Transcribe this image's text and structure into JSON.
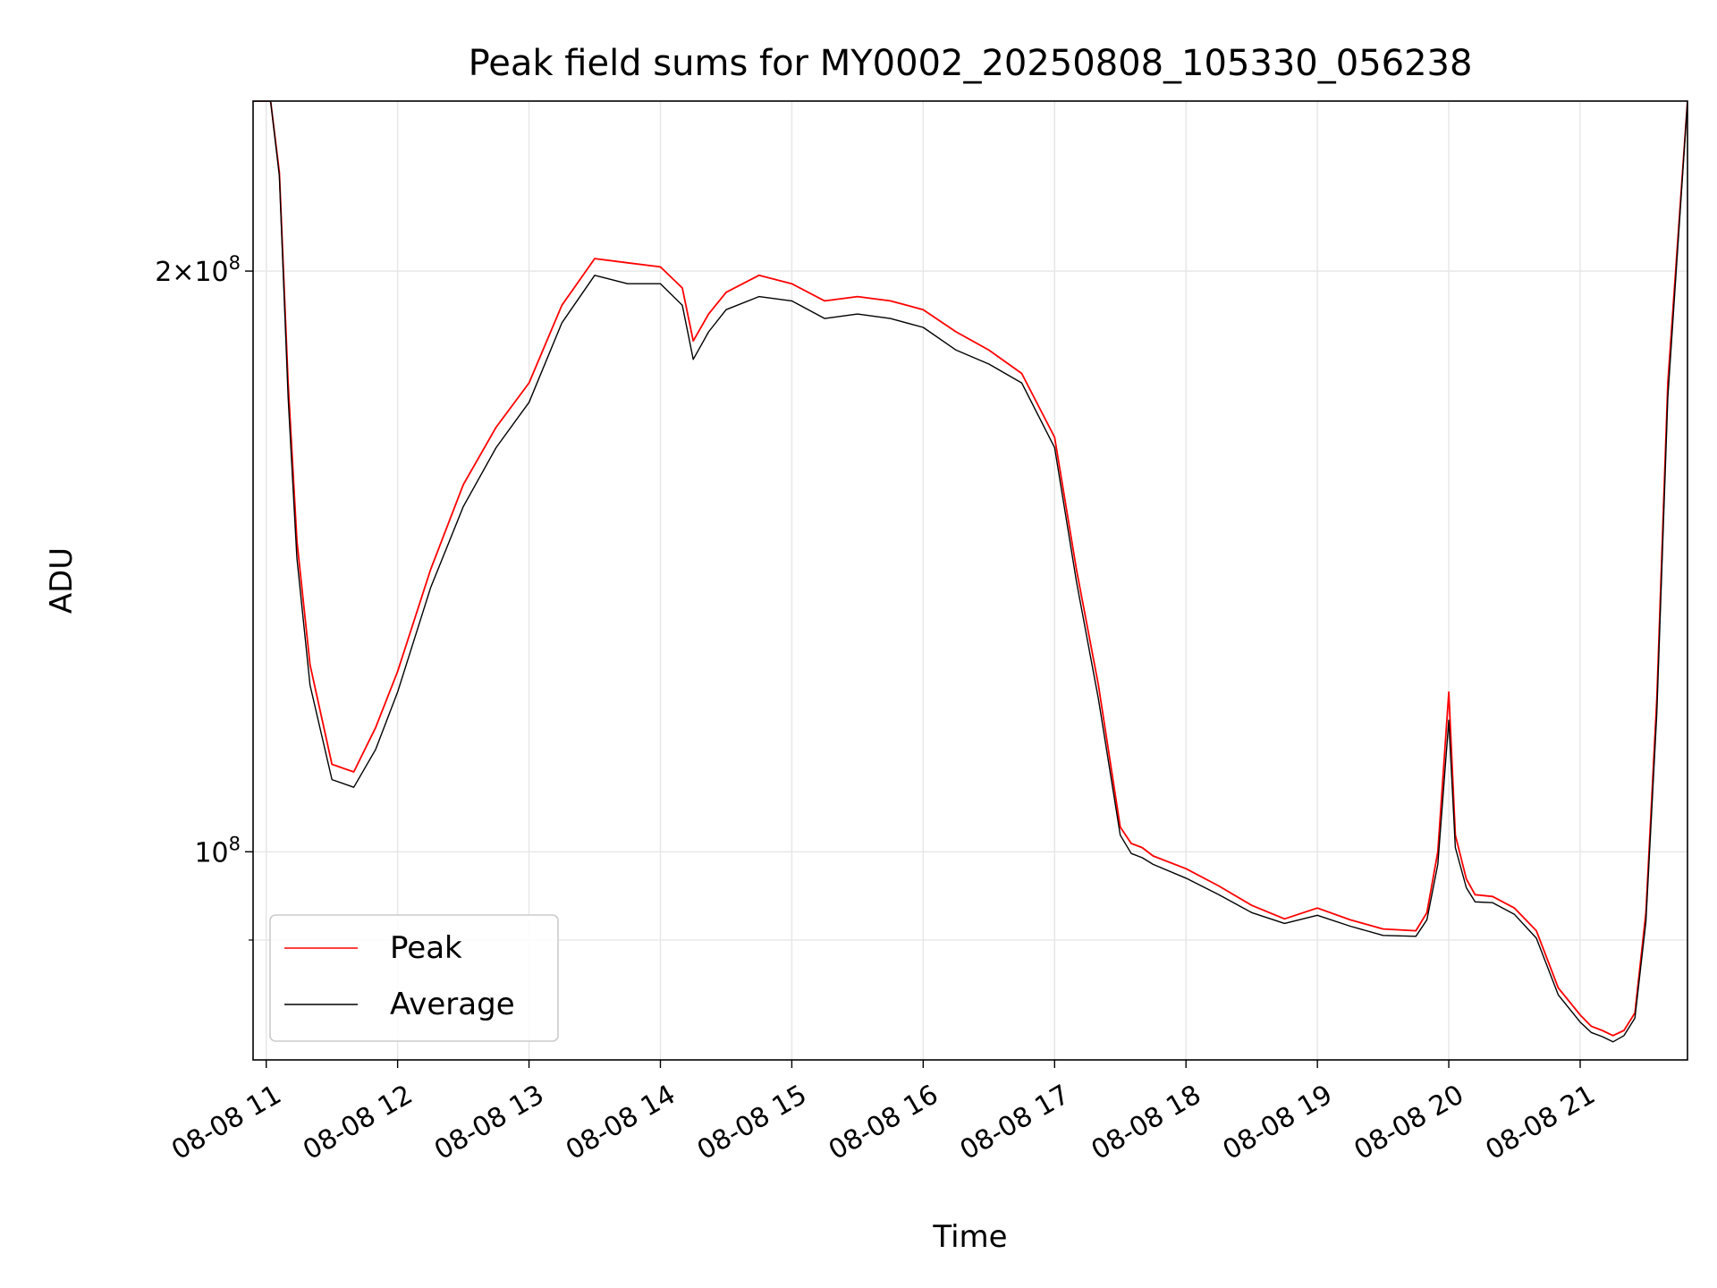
{
  "chart_data": {
    "type": "line",
    "title": "Peak field sums for MY0002_20250808_105330_056238",
    "xlabel": "Time",
    "ylabel": "ADU",
    "x_scale": "time",
    "y_scale": "log",
    "xlim": [
      "2025-08-08 10:54",
      "2025-08-08 21:49"
    ],
    "ylim": [
      78000000,
      245000000
    ],
    "x_ticks": [
      {
        "value": "2025-08-08 11:00",
        "label": "08-08 11"
      },
      {
        "value": "2025-08-08 12:00",
        "label": "08-08 12"
      },
      {
        "value": "2025-08-08 13:00",
        "label": "08-08 13"
      },
      {
        "value": "2025-08-08 14:00",
        "label": "08-08 14"
      },
      {
        "value": "2025-08-08 15:00",
        "label": "08-08 15"
      },
      {
        "value": "2025-08-08 16:00",
        "label": "08-08 16"
      },
      {
        "value": "2025-08-08 17:00",
        "label": "08-08 17"
      },
      {
        "value": "2025-08-08 18:00",
        "label": "08-08 18"
      },
      {
        "value": "2025-08-08 19:00",
        "label": "08-08 19"
      },
      {
        "value": "2025-08-08 20:00",
        "label": "08-08 20"
      },
      {
        "value": "2025-08-08 21:00",
        "label": "08-08 21"
      }
    ],
    "y_major_ticks": [
      {
        "value": 100000000,
        "base": "10",
        "exp": "8"
      },
      {
        "value": 200000000,
        "mant": "2×10",
        "exp": "8"
      }
    ],
    "y_minor_ticks": [
      90000000
    ],
    "grid": true,
    "legend": {
      "position": "lower-left"
    },
    "series": [
      {
        "name": "Peak",
        "color": "#ff0000",
        "x": [
          "2025-08-08 10:54",
          "2025-08-08 11:02",
          "2025-08-08 11:06",
          "2025-08-08 11:10",
          "2025-08-08 11:14",
          "2025-08-08 11:20",
          "2025-08-08 11:30",
          "2025-08-08 11:40",
          "2025-08-08 11:50",
          "2025-08-08 12:00",
          "2025-08-08 12:15",
          "2025-08-08 12:30",
          "2025-08-08 12:45",
          "2025-08-08 13:00",
          "2025-08-08 13:15",
          "2025-08-08 13:30",
          "2025-08-08 13:45",
          "2025-08-08 14:00",
          "2025-08-08 14:10",
          "2025-08-08 14:15",
          "2025-08-08 14:22",
          "2025-08-08 14:30",
          "2025-08-08 14:45",
          "2025-08-08 15:00",
          "2025-08-08 15:15",
          "2025-08-08 15:30",
          "2025-08-08 15:45",
          "2025-08-08 16:00",
          "2025-08-08 16:15",
          "2025-08-08 16:30",
          "2025-08-08 16:45",
          "2025-08-08 17:00",
          "2025-08-08 17:10",
          "2025-08-08 17:20",
          "2025-08-08 17:30",
          "2025-08-08 17:35",
          "2025-08-08 17:40",
          "2025-08-08 17:45",
          "2025-08-08 18:00",
          "2025-08-08 18:15",
          "2025-08-08 18:30",
          "2025-08-08 18:45",
          "2025-08-08 19:00",
          "2025-08-08 19:15",
          "2025-08-08 19:30",
          "2025-08-08 19:45",
          "2025-08-08 19:50",
          "2025-08-08 19:55",
          "2025-08-08 20:00",
          "2025-08-08 20:03",
          "2025-08-08 20:08",
          "2025-08-08 20:12",
          "2025-08-08 20:20",
          "2025-08-08 20:30",
          "2025-08-08 20:40",
          "2025-08-08 20:50",
          "2025-08-08 21:00",
          "2025-08-08 21:05",
          "2025-08-08 21:10",
          "2025-08-08 21:15",
          "2025-08-08 21:20",
          "2025-08-08 21:25",
          "2025-08-08 21:30",
          "2025-08-08 21:35",
          "2025-08-08 21:40",
          "2025-08-08 21:49"
        ],
        "y": [
          245000000,
          245000000,
          225000000,
          175000000,
          145000000,
          125000000,
          111000000,
          110000000,
          116000000,
          124000000,
          140000000,
          155000000,
          166000000,
          175000000,
          192000000,
          203000000,
          202000000,
          201000000,
          196000000,
          184000000,
          190000000,
          195000000,
          199000000,
          197000000,
          193000000,
          194000000,
          193000000,
          191000000,
          186000000,
          182000000,
          177000000,
          164000000,
          140000000,
          122000000,
          103000000,
          101000000,
          100500000,
          99500000,
          98000000,
          96000000,
          93800000,
          92300000,
          93500000,
          92200000,
          91200000,
          91000000,
          93000000,
          100000000,
          121000000,
          102000000,
          96800000,
          95000000,
          94800000,
          93500000,
          91000000,
          85000000,
          82300000,
          81200000,
          80800000,
          80300000,
          80800000,
          82500000,
          93000000,
          120000000,
          175000000,
          245000000
        ]
      },
      {
        "name": "Average",
        "color": "#000000",
        "x": [
          "2025-08-08 10:54",
          "2025-08-08 11:02",
          "2025-08-08 11:06",
          "2025-08-08 11:10",
          "2025-08-08 11:14",
          "2025-08-08 11:20",
          "2025-08-08 11:30",
          "2025-08-08 11:40",
          "2025-08-08 11:50",
          "2025-08-08 12:00",
          "2025-08-08 12:15",
          "2025-08-08 12:30",
          "2025-08-08 12:45",
          "2025-08-08 13:00",
          "2025-08-08 13:15",
          "2025-08-08 13:30",
          "2025-08-08 13:45",
          "2025-08-08 14:00",
          "2025-08-08 14:10",
          "2025-08-08 14:15",
          "2025-08-08 14:22",
          "2025-08-08 14:30",
          "2025-08-08 14:45",
          "2025-08-08 15:00",
          "2025-08-08 15:15",
          "2025-08-08 15:30",
          "2025-08-08 15:45",
          "2025-08-08 16:00",
          "2025-08-08 16:15",
          "2025-08-08 16:30",
          "2025-08-08 16:45",
          "2025-08-08 17:00",
          "2025-08-08 17:10",
          "2025-08-08 17:20",
          "2025-08-08 17:30",
          "2025-08-08 17:35",
          "2025-08-08 17:40",
          "2025-08-08 17:45",
          "2025-08-08 18:00",
          "2025-08-08 18:15",
          "2025-08-08 18:30",
          "2025-08-08 18:45",
          "2025-08-08 19:00",
          "2025-08-08 19:15",
          "2025-08-08 19:30",
          "2025-08-08 19:45",
          "2025-08-08 19:50",
          "2025-08-08 19:55",
          "2025-08-08 20:00",
          "2025-08-08 20:03",
          "2025-08-08 20:08",
          "2025-08-08 20:12",
          "2025-08-08 20:20",
          "2025-08-08 20:30",
          "2025-08-08 20:40",
          "2025-08-08 20:50",
          "2025-08-08 21:00",
          "2025-08-08 21:05",
          "2025-08-08 21:10",
          "2025-08-08 21:15",
          "2025-08-08 21:20",
          "2025-08-08 21:25",
          "2025-08-08 21:30",
          "2025-08-08 21:35",
          "2025-08-08 21:40",
          "2025-08-08 21:49"
        ],
        "y": [
          245000000,
          245000000,
          224000000,
          172000000,
          142000000,
          122000000,
          109000000,
          108000000,
          113000000,
          121000000,
          137000000,
          151000000,
          162000000,
          171000000,
          188000000,
          199000000,
          197000000,
          197000000,
          192000000,
          180000000,
          186000000,
          191000000,
          194000000,
          193000000,
          189000000,
          190000000,
          189000000,
          187000000,
          182000000,
          179000000,
          175000000,
          162000000,
          138000000,
          120000000,
          102000000,
          99800000,
          99300000,
          98500000,
          96900000,
          95000000,
          93000000,
          91800000,
          92700000,
          91500000,
          90500000,
          90400000,
          92200000,
          98500000,
          117000000,
          100500000,
          95800000,
          94200000,
          94100000,
          92800000,
          90200000,
          84300000,
          81600000,
          80600000,
          80200000,
          79700000,
          80300000,
          82000000,
          92000000,
          118000000,
          172000000,
          245000000
        ]
      }
    ]
  }
}
